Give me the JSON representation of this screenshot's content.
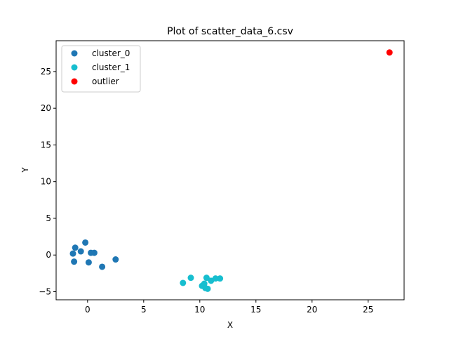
{
  "chart_data": {
    "type": "scatter",
    "title": "Plot of scatter_data_6.csv",
    "xlabel": "X",
    "ylabel": "Y",
    "xlim": [
      -2.8,
      28.2
    ],
    "ylim": [
      -6.1,
      29.2
    ],
    "xticks": [
      0,
      5,
      10,
      15,
      20,
      25
    ],
    "yticks": [
      -5,
      0,
      5,
      10,
      15,
      20,
      25
    ],
    "grid": false,
    "legend_position": "top-left",
    "series": [
      {
        "name": "cluster_0",
        "color": "#1f77b4",
        "points": [
          [
            -1.3,
            0.2
          ],
          [
            -1.1,
            1.0
          ],
          [
            -1.2,
            -0.9
          ],
          [
            -0.6,
            0.5
          ],
          [
            -0.2,
            1.7
          ],
          [
            0.1,
            -1.0
          ],
          [
            0.3,
            0.3
          ],
          [
            0.6,
            0.3
          ],
          [
            1.3,
            -1.6
          ],
          [
            2.5,
            -0.6
          ]
        ]
      },
      {
        "name": "cluster_1",
        "color": "#17becf",
        "points": [
          [
            8.5,
            -3.8
          ],
          [
            9.2,
            -3.1
          ],
          [
            10.2,
            -4.2
          ],
          [
            10.4,
            -3.9
          ],
          [
            10.5,
            -4.5
          ],
          [
            10.6,
            -3.1
          ],
          [
            10.7,
            -4.6
          ],
          [
            11.0,
            -3.5
          ],
          [
            11.4,
            -3.2
          ],
          [
            11.8,
            -3.2
          ]
        ]
      },
      {
        "name": "outlier",
        "color": "#ff0000",
        "points": [
          [
            26.9,
            27.6
          ]
        ]
      }
    ]
  }
}
